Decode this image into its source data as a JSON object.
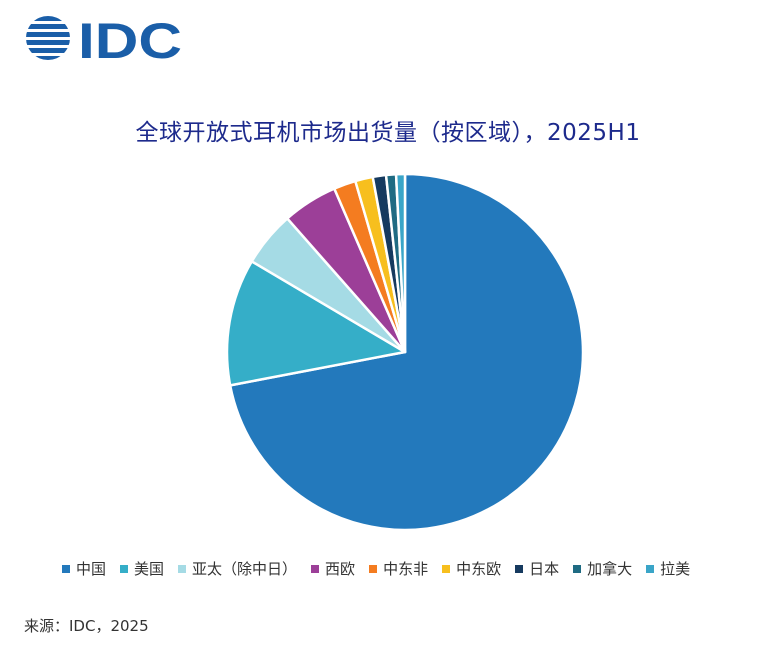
{
  "logo": {
    "text": "IDC",
    "color": "#1a5ea8"
  },
  "source": "来源：IDC，2025",
  "chart_data": {
    "type": "pie",
    "title": "全球开放式耳机市场出货量（按区域），2025H1",
    "start_angle_deg": 0,
    "legend_position": "bottom",
    "slices": [
      {
        "label": "中国",
        "value": 72.0,
        "color": "#2379bc"
      },
      {
        "label": "美国",
        "value": 11.5,
        "color": "#35aec8"
      },
      {
        "label": "亚太（除中日）",
        "value": 5.0,
        "color": "#a5dbe5"
      },
      {
        "label": "西欧",
        "value": 5.0,
        "color": "#9c3f98"
      },
      {
        "label": "中东非",
        "value": 2.0,
        "color": "#f47c20"
      },
      {
        "label": "中东欧",
        "value": 1.6,
        "color": "#f7bf1e"
      },
      {
        "label": "日本",
        "value": 1.2,
        "color": "#163a5f"
      },
      {
        "label": "加拿大",
        "value": 0.9,
        "color": "#1f6b83"
      },
      {
        "label": "拉美",
        "value": 0.8,
        "color": "#3aa5c8"
      }
    ]
  }
}
